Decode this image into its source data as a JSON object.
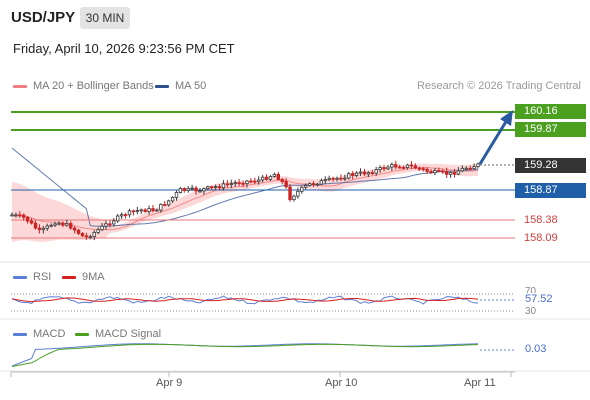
{
  "header": {
    "symbol": "USD/JPY",
    "interval": "30 MIN",
    "timestamp": "Friday, April 10, 2026 9:23:56 PM CET"
  },
  "legend_main": [
    {
      "label": "MA 20 + Bollinger Bands",
      "color": "#f08080"
    },
    {
      "label": "MA 50",
      "color": "#2e4f8c"
    }
  ],
  "copyright": "Research © 2026 Trading Central",
  "price_levels": [
    {
      "value": "160.16",
      "style": "green-box"
    },
    {
      "value": "159.87",
      "style": "green-box"
    },
    {
      "value": "159.28",
      "style": "dark-box"
    },
    {
      "value": "158.87",
      "style": "blue-box"
    },
    {
      "value": "158.38",
      "style": "red-text"
    },
    {
      "value": "158.09",
      "style": "red-text"
    }
  ],
  "rsi_panel": {
    "legend": [
      {
        "label": "RSI",
        "color": "#5b7fd6"
      },
      {
        "label": "9MA",
        "color": "#d42020"
      }
    ],
    "levels": [
      "70",
      "30"
    ],
    "value": "57.52"
  },
  "macd_panel": {
    "legend": [
      {
        "label": "MACD",
        "color": "#5b7fd6"
      },
      {
        "label": "MACD Signal",
        "color": "#4ba020"
      }
    ],
    "value": "0.03"
  },
  "x_axis": [
    "Apr 9",
    "Apr 10",
    "Apr 11"
  ],
  "colors": {
    "resistance": "#4ba020",
    "pivot": "#1f5fa8",
    "support": "#e87777",
    "candle_up": "#3a3a3a",
    "candle_down": "#cc2222",
    "bollinger": "#fdd5d5"
  }
}
